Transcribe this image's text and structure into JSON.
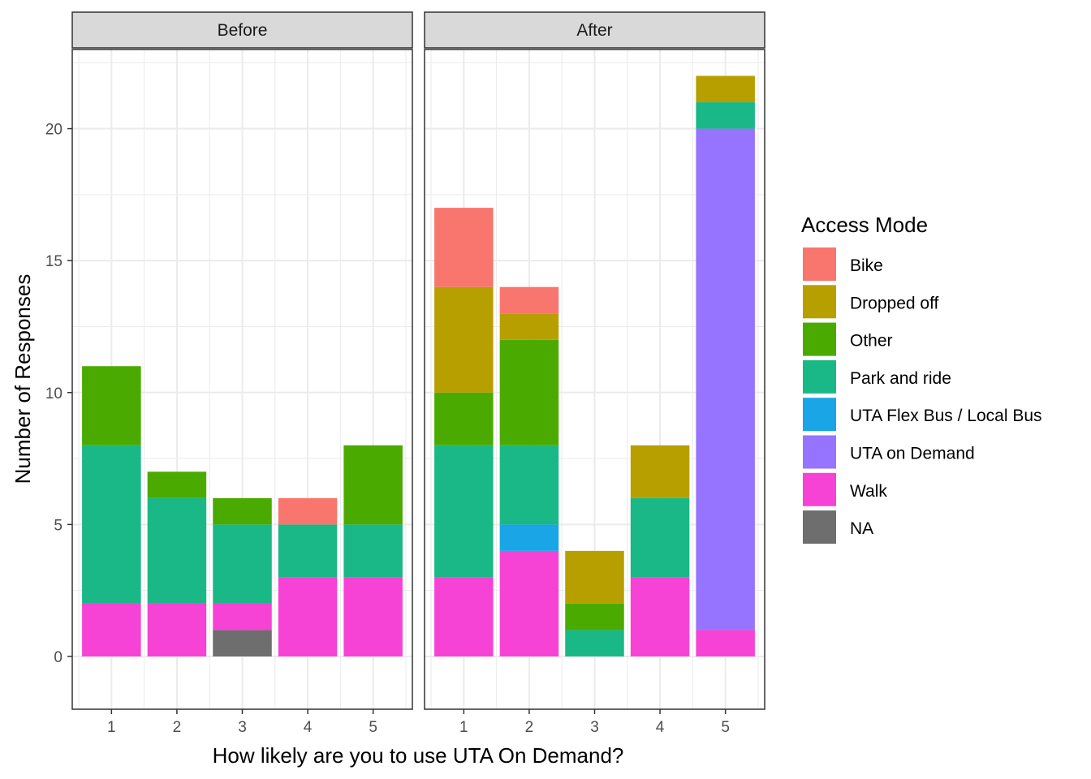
{
  "chart_data": {
    "type": "bar",
    "stacked": true,
    "xlabel": "How likely are you to use UTA On Demand?",
    "ylabel": "Number of Responses",
    "ylim": [
      -2,
      23
    ],
    "yticks": [
      0,
      5,
      10,
      15,
      20
    ],
    "categories": [
      "1",
      "2",
      "3",
      "4",
      "5"
    ],
    "grid": true,
    "legend": {
      "title": "Access Mode",
      "placement": "right",
      "entries": [
        {
          "name": "Bike",
          "color": "#F8766D"
        },
        {
          "name": "Dropped off",
          "color": "#B79F00"
        },
        {
          "name": "Other",
          "color": "#4BAA00"
        },
        {
          "name": "Park and ride",
          "color": "#1AB886"
        },
        {
          "name": "UTA Flex Bus / Local Bus",
          "color": "#19A5E6"
        },
        {
          "name": "UTA on Demand",
          "color": "#9674FF"
        },
        {
          "name": "Walk",
          "color": "#F643D5"
        },
        {
          "name": "NA",
          "color": "#6E6E6E"
        }
      ]
    },
    "stack_order": [
      "NA",
      "Walk",
      "UTA on Demand",
      "UTA Flex Bus / Local Bus",
      "Park and ride",
      "Other",
      "Dropped off",
      "Bike"
    ],
    "panels": [
      {
        "label": "Before",
        "series": [
          {
            "name": "Bike",
            "values": [
              0,
              0,
              0,
              1,
              0
            ]
          },
          {
            "name": "Dropped off",
            "values": [
              0,
              0,
              0,
              0,
              0
            ]
          },
          {
            "name": "Other",
            "values": [
              3,
              1,
              1,
              0,
              3
            ]
          },
          {
            "name": "Park and ride",
            "values": [
              6,
              4,
              3,
              2,
              2
            ]
          },
          {
            "name": "UTA Flex Bus / Local Bus",
            "values": [
              0,
              0,
              0,
              0,
              0
            ]
          },
          {
            "name": "UTA on Demand",
            "values": [
              0,
              0,
              0,
              0,
              0
            ]
          },
          {
            "name": "Walk",
            "values": [
              2,
              2,
              1,
              3,
              3
            ]
          },
          {
            "name": "NA",
            "values": [
              0,
              0,
              1,
              0,
              0
            ]
          }
        ]
      },
      {
        "label": "After",
        "series": [
          {
            "name": "Bike",
            "values": [
              3,
              1,
              0,
              0,
              0
            ]
          },
          {
            "name": "Dropped off",
            "values": [
              4,
              1,
              2,
              2,
              1
            ]
          },
          {
            "name": "Other",
            "values": [
              2,
              4,
              1,
              0,
              0
            ]
          },
          {
            "name": "Park and ride",
            "values": [
              5,
              3,
              1,
              3,
              1
            ]
          },
          {
            "name": "UTA Flex Bus / Local Bus",
            "values": [
              0,
              1,
              0,
              0,
              0
            ]
          },
          {
            "name": "UTA on Demand",
            "values": [
              0,
              0,
              0,
              0,
              19
            ]
          },
          {
            "name": "Walk",
            "values": [
              3,
              4,
              0,
              3,
              1
            ]
          },
          {
            "name": "NA",
            "values": [
              0,
              0,
              0,
              0,
              0
            ]
          }
        ]
      }
    ]
  }
}
